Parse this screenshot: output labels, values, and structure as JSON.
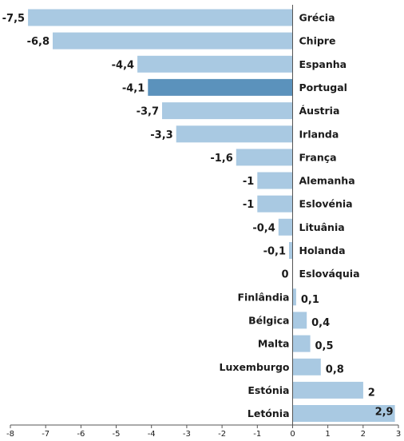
{
  "chart_data": {
    "type": "bar",
    "orientation": "horizontal",
    "title": "",
    "xlabel": "",
    "ylabel": "",
    "xlim": [
      -8,
      3
    ],
    "grid": false,
    "legend": "none",
    "categories": [
      "Grécia",
      "Chipre",
      "Espanha",
      "Portugal",
      "Áustria",
      "Irlanda",
      "França",
      "Alemanha",
      "Eslovénia",
      "Lituânia",
      "Holanda",
      "Eslováquia",
      "Finlândia",
      "Bélgica",
      "Malta",
      "Luxemburgo",
      "Estónia",
      "Letónia"
    ],
    "values": [
      -7.5,
      -6.8,
      -4.4,
      -4.1,
      -3.7,
      -3.3,
      -1.6,
      -1,
      -1,
      -0.4,
      -0.1,
      0,
      0.1,
      0.4,
      0.5,
      0.8,
      2,
      2.9
    ],
    "value_labels": [
      "-7,5",
      "-6,8",
      "-4,4",
      "-4,1",
      "-3,7",
      "-3,3",
      "-1,6",
      "-1",
      "-1",
      "-0,4",
      "-0,1",
      "0",
      "0,1",
      "0,4",
      "0,5",
      "0,8",
      "2",
      "2,9"
    ],
    "x_ticks": [
      -8,
      -7,
      -6,
      -5,
      -4,
      -3,
      -2,
      -1,
      0,
      1,
      2,
      3
    ],
    "x_tick_labels": [
      "-8",
      "-7",
      "-6",
      "-5",
      "-4",
      "-3",
      "-2",
      "-1",
      "0",
      "1",
      "2",
      "3"
    ],
    "highlight": "Portugal",
    "colors": {
      "bar": "#a9c9e2",
      "highlight": "#5b92bc",
      "axis": "#555555",
      "text": "#1a1a1a"
    }
  }
}
